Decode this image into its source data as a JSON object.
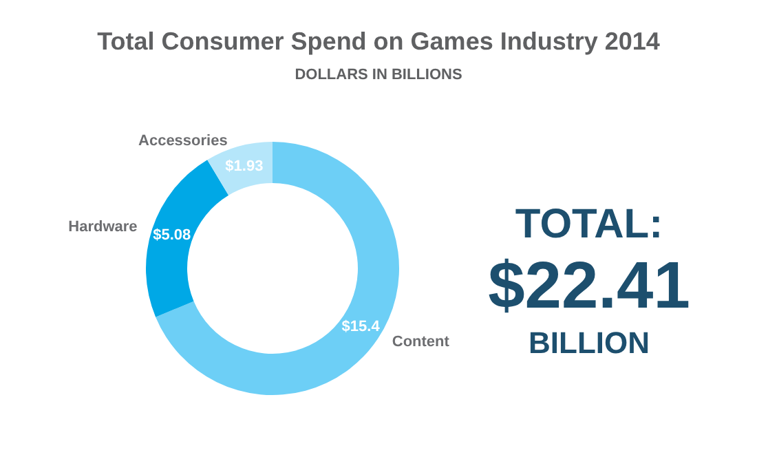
{
  "chart_data": {
    "type": "donut",
    "title": "Total Consumer Spend on Games Industry 2014",
    "subtitle": "DOLLARS IN BILLIONS",
    "categories": [
      "Content",
      "Hardware",
      "Accessories"
    ],
    "values": [
      15.4,
      5.08,
      1.93
    ],
    "value_labels": [
      "$15.4",
      "$5.08",
      "$1.93"
    ],
    "colors": [
      "#6dcff6",
      "#00a8e6",
      "#b5e6fa"
    ],
    "annotations": [
      "TOTAL:",
      "$22.41",
      "BILLION"
    ]
  }
}
